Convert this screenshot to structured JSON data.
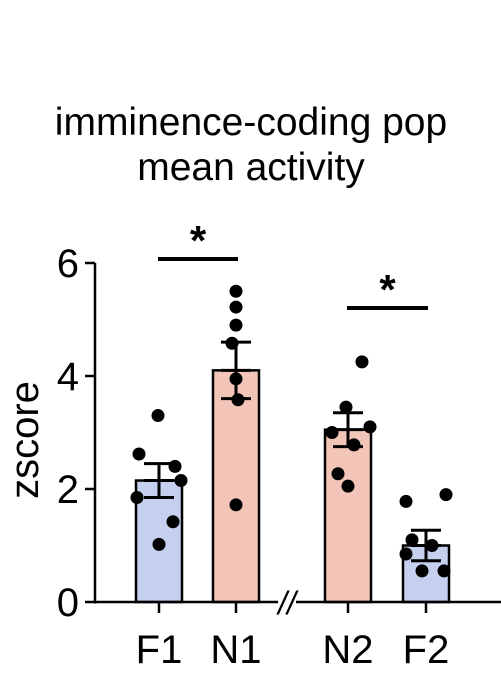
{
  "chart_data": {
    "type": "bar",
    "title_lines": [
      "imminence-coding pop",
      "mean activity"
    ],
    "ylabel": "zscore",
    "xlabel": "",
    "ylim": [
      0,
      6
    ],
    "yticks": [
      0,
      2,
      4,
      6
    ],
    "axis_break": "//",
    "grid": false,
    "categories": [
      "F1",
      "N1",
      "N2",
      "F2"
    ],
    "values": [
      2.15,
      4.1,
      3.05,
      1.0
    ],
    "sem": [
      0.3,
      0.5,
      0.3,
      0.27
    ],
    "bar_colors": [
      "#c5cfee",
      "#f2c5b8",
      "#f2c5b8",
      "#c5cfee"
    ],
    "points": [
      [
        3.3,
        2.62,
        2.4,
        2.15,
        1.85,
        1.42,
        1.02
      ],
      [
        5.5,
        5.22,
        4.9,
        4.58,
        3.95,
        3.58,
        1.72
      ],
      [
        4.25,
        3.45,
        3.1,
        3.0,
        2.78,
        2.27,
        2.05
      ],
      [
        1.78,
        1.9,
        1.1,
        1.0,
        0.85,
        0.55,
        0.55
      ]
    ],
    "significance": [
      {
        "between": [
          "F1",
          "N1"
        ],
        "label": "*"
      },
      {
        "between": [
          "N2",
          "F2"
        ],
        "label": "*"
      }
    ]
  }
}
